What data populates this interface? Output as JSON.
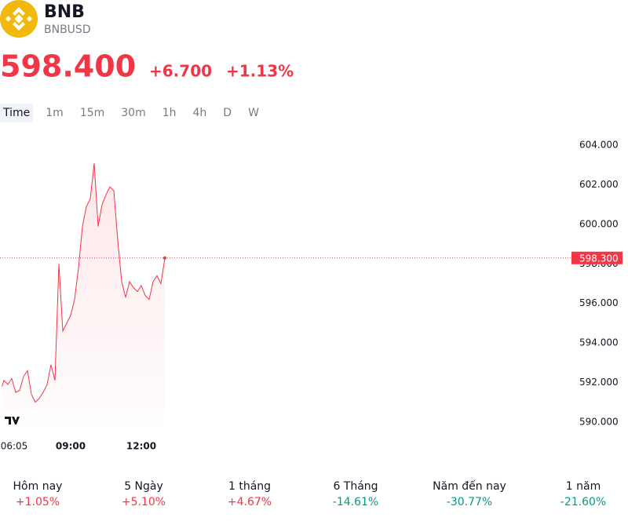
{
  "header": {
    "name": "BNB",
    "symbol": "BNBUSD",
    "price": "598.400",
    "change": "+6.700",
    "change_percent": "+1.13%"
  },
  "tabs": [
    "Time",
    "1m",
    "15m",
    "30m",
    "1h",
    "4h",
    "D",
    "W"
  ],
  "chart_data": {
    "type": "line",
    "color": "#f23645",
    "x": [
      "06:05",
      "06:10",
      "06:20",
      "06:30",
      "06:40",
      "06:50",
      "07:00",
      "07:10",
      "07:20",
      "07:30",
      "07:40",
      "07:50",
      "08:00",
      "08:10",
      "08:20",
      "08:30",
      "08:40",
      "08:50",
      "09:00",
      "09:10",
      "09:20",
      "09:30",
      "09:40",
      "09:50",
      "10:00",
      "10:10",
      "10:20",
      "10:30",
      "10:40",
      "10:50",
      "11:00",
      "11:10",
      "11:20",
      "11:30",
      "11:40",
      "11:50",
      "12:00",
      "12:10",
      "12:20",
      "12:30",
      "12:40",
      "12:50",
      "13:00"
    ],
    "values": [
      591.8,
      592.1,
      591.9,
      592.2,
      591.5,
      591.6,
      592.3,
      592.6,
      591.4,
      591.0,
      591.2,
      591.5,
      591.9,
      592.9,
      592.1,
      598.0,
      594.6,
      595.0,
      595.4,
      596.2,
      597.8,
      599.9,
      600.9,
      601.3,
      603.1,
      599.9,
      601.0,
      601.5,
      601.9,
      601.7,
      599.2,
      597.1,
      596.3,
      597.1,
      596.8,
      596.6,
      596.9,
      596.4,
      596.2,
      597.1,
      597.4,
      597.0,
      598.3
    ],
    "xlim": [
      "06:00",
      "20:30"
    ],
    "xticks": [
      "06:05",
      "09:00",
      "12:00"
    ],
    "ylim": [
      589,
      605
    ],
    "yticks": [
      {
        "value": 590,
        "label": "590.000"
      },
      {
        "value": 592,
        "label": "592.000"
      },
      {
        "value": 594,
        "label": "594.000"
      },
      {
        "value": 596,
        "label": "596.000"
      },
      {
        "value": 598,
        "label": "598.000"
      },
      {
        "value": 600,
        "label": "600.000"
      },
      {
        "value": 602,
        "label": "602.000"
      },
      {
        "value": 604,
        "label": "604.000"
      }
    ],
    "last_price": {
      "value": 598.3,
      "label": "598.300"
    }
  },
  "performance": {
    "periods": [
      "Hôm nay",
      "5 Ngày",
      "1 tháng",
      "6 Tháng",
      "Năm đến nay",
      "1 năm"
    ],
    "values": [
      1.05,
      5.1,
      4.67,
      -14.61,
      -30.77,
      -21.6
    ],
    "value_labels": [
      "+1.05%",
      "+5.10%",
      "+4.67%",
      "-14.61%",
      "-30.77%",
      "-21.60%"
    ]
  }
}
